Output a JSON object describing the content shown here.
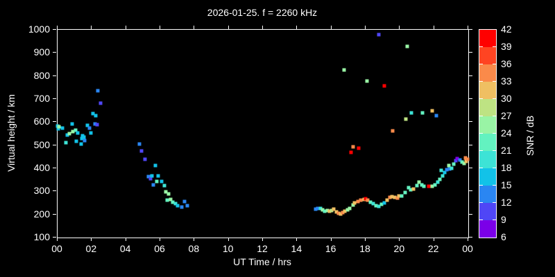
{
  "title": "2026-01-25. f = 2260 kHz",
  "chart_data": {
    "type": "scatter",
    "title": "2026-01-25. f = 2260 kHz",
    "xlabel": "UT Time / hrs",
    "ylabel": "Virtual height / km",
    "colorbar_label": "SNR / dB",
    "background": "#000000",
    "grid": false,
    "xlim": [
      0,
      24
    ],
    "ylim": [
      100,
      1000
    ],
    "x_ticks": [
      0,
      2,
      4,
      6,
      8,
      10,
      12,
      14,
      16,
      18,
      20,
      22,
      24
    ],
    "x_tick_labels": [
      "00",
      "02",
      "04",
      "06",
      "08",
      "10",
      "12",
      "14",
      "16",
      "18",
      "20",
      "22",
      "00"
    ],
    "y_ticks": [
      100,
      200,
      300,
      400,
      500,
      600,
      700,
      800,
      900,
      1000
    ],
    "colorbar": {
      "min": 6,
      "max": 42,
      "step": 3,
      "tick_labels": [
        6,
        9,
        12,
        15,
        18,
        21,
        24,
        27,
        30,
        33,
        36,
        39,
        42
      ],
      "colors_bottom_to_top": [
        "#7B00E8",
        "#4F46F6",
        "#2A86F2",
        "#12C2E8",
        "#3DE3D6",
        "#63F2C0",
        "#99F4A5",
        "#BEE383",
        "#EFBF62",
        "#FA8A4A",
        "#FF4422",
        "#FF0000"
      ]
    },
    "marker": "square",
    "points_format": [
      "ut_hrs",
      "virtual_height_km",
      "snr_db"
    ],
    "points": [
      [
        0.0,
        583,
        16
      ],
      [
        0.05,
        570,
        16
      ],
      [
        0.1,
        580,
        25
      ],
      [
        0.3,
        574,
        16
      ],
      [
        0.5,
        511,
        19
      ],
      [
        0.55,
        544,
        16
      ],
      [
        0.7,
        550,
        25
      ],
      [
        0.85,
        592,
        16
      ],
      [
        0.9,
        559,
        25
      ],
      [
        1.05,
        565,
        22
      ],
      [
        1.1,
        517,
        16
      ],
      [
        1.18,
        553,
        16
      ],
      [
        1.38,
        505,
        16
      ],
      [
        1.42,
        529,
        16
      ],
      [
        1.46,
        541,
        16
      ],
      [
        1.54,
        535,
        16
      ],
      [
        1.58,
        520,
        13
      ],
      [
        1.74,
        586,
        16
      ],
      [
        1.86,
        574,
        13
      ],
      [
        1.95,
        553,
        16
      ],
      [
        2.07,
        637,
        16
      ],
      [
        2.19,
        592,
        13
      ],
      [
        2.23,
        628,
        16
      ],
      [
        2.31,
        589,
        10
      ],
      [
        2.35,
        736,
        13
      ],
      [
        2.51,
        682,
        10
      ],
      [
        4.79,
        505,
        13
      ],
      [
        4.92,
        475,
        10
      ],
      [
        5.12,
        439,
        10
      ],
      [
        5.32,
        364,
        13
      ],
      [
        5.45,
        356,
        10
      ],
      [
        5.52,
        367,
        16
      ],
      [
        5.6,
        328,
        13
      ],
      [
        5.7,
        412,
        16
      ],
      [
        5.79,
        343,
        22
      ],
      [
        5.87,
        367,
        16
      ],
      [
        6.07,
        343,
        16
      ],
      [
        6.23,
        325,
        19
      ],
      [
        6.33,
        298,
        25
      ],
      [
        6.4,
        262,
        22
      ],
      [
        6.49,
        289,
        25
      ],
      [
        6.6,
        265,
        25
      ],
      [
        6.73,
        253,
        22
      ],
      [
        6.88,
        247,
        19
      ],
      [
        7.0,
        238,
        16
      ],
      [
        7.25,
        232,
        13
      ],
      [
        7.4,
        256,
        13
      ],
      [
        7.57,
        238,
        13
      ],
      [
        15.1,
        223,
        13
      ],
      [
        15.22,
        226,
        13
      ],
      [
        15.35,
        226,
        19
      ],
      [
        15.5,
        220,
        25
      ],
      [
        15.62,
        214,
        22
      ],
      [
        15.78,
        217,
        25
      ],
      [
        15.9,
        214,
        31
      ],
      [
        16.0,
        217,
        28
      ],
      [
        16.15,
        223,
        31
      ],
      [
        16.3,
        211,
        31
      ],
      [
        16.42,
        205,
        34
      ],
      [
        16.55,
        202,
        31
      ],
      [
        16.65,
        208,
        34
      ],
      [
        16.78,
        214,
        31
      ],
      [
        16.95,
        220,
        25
      ],
      [
        17.05,
        226,
        25
      ],
      [
        17.25,
        241,
        25
      ],
      [
        17.35,
        250,
        31
      ],
      [
        17.55,
        256,
        34
      ],
      [
        17.7,
        262,
        34
      ],
      [
        17.9,
        265,
        31
      ],
      [
        18.0,
        268,
        40
      ],
      [
        18.12,
        262,
        34
      ],
      [
        18.3,
        253,
        22
      ],
      [
        18.45,
        247,
        19
      ],
      [
        18.6,
        238,
        22
      ],
      [
        18.78,
        235,
        19
      ],
      [
        18.95,
        244,
        22
      ],
      [
        19.1,
        250,
        16
      ],
      [
        19.25,
        262,
        31
      ],
      [
        19.42,
        274,
        34
      ],
      [
        19.55,
        277,
        31
      ],
      [
        19.7,
        274,
        31
      ],
      [
        19.85,
        271,
        34
      ],
      [
        19.95,
        280,
        31
      ],
      [
        20.1,
        280,
        22
      ],
      [
        20.3,
        295,
        22
      ],
      [
        20.5,
        316,
        22
      ],
      [
        20.65,
        307,
        22
      ],
      [
        20.8,
        310,
        31
      ],
      [
        21.0,
        325,
        22
      ],
      [
        21.12,
        340,
        25
      ],
      [
        21.28,
        328,
        22
      ],
      [
        21.42,
        322,
        22
      ],
      [
        21.7,
        322,
        40
      ],
      [
        21.9,
        322,
        25
      ],
      [
        22.05,
        328,
        22
      ],
      [
        22.2,
        340,
        19
      ],
      [
        22.35,
        352,
        22
      ],
      [
        22.4,
        391,
        19
      ],
      [
        22.5,
        367,
        19
      ],
      [
        22.62,
        382,
        16
      ],
      [
        22.75,
        394,
        13
      ],
      [
        22.85,
        412,
        25
      ],
      [
        22.9,
        397,
        13
      ],
      [
        23.02,
        400,
        19
      ],
      [
        23.15,
        418,
        22
      ],
      [
        23.25,
        433,
        10
      ],
      [
        23.35,
        442,
        7
      ],
      [
        23.52,
        436,
        13
      ],
      [
        23.65,
        427,
        22
      ],
      [
        23.75,
        421,
        25
      ],
      [
        23.82,
        445,
        34
      ],
      [
        23.88,
        430,
        31
      ],
      [
        23.95,
        439,
        34
      ],
      [
        18.78,
        979,
        10
      ],
      [
        20.43,
        928,
        25
      ],
      [
        16.74,
        826,
        25
      ],
      [
        18.08,
        778,
        25
      ],
      [
        19.1,
        757,
        40
      ],
      [
        20.35,
        613,
        28
      ],
      [
        20.68,
        640,
        19
      ],
      [
        21.33,
        640,
        22
      ],
      [
        21.9,
        649,
        31
      ],
      [
        22.13,
        628,
        13
      ],
      [
        19.58,
        562,
        34
      ],
      [
        17.27,
        493,
        34
      ],
      [
        17.6,
        487,
        40
      ],
      [
        17.15,
        469,
        40
      ]
    ]
  }
}
